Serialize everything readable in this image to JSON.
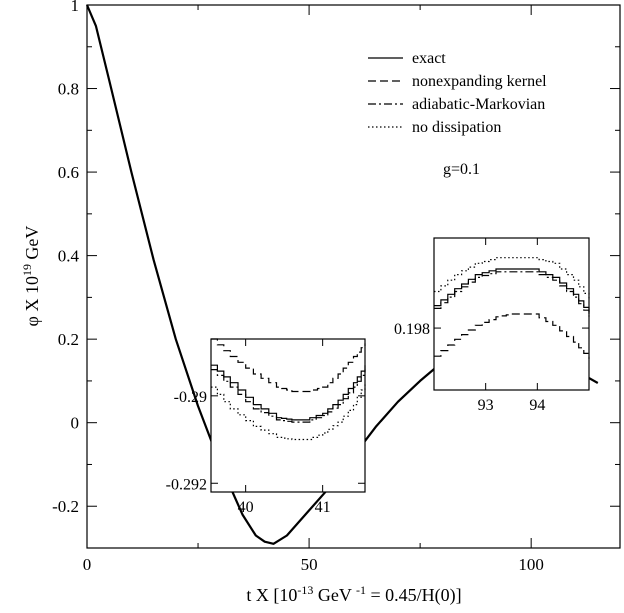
{
  "chart_data": {
    "type": "line",
    "title": "",
    "xlabel_parts": {
      "main": "t X [10",
      "exp1": "-13",
      "mid": " GeV ",
      "exp2": "-1",
      "tail": " = 0.45/H(0)]"
    },
    "ylabel_parts": {
      "main": "φ X 10",
      "exp": "19",
      "tail": " GeV"
    },
    "xlim": [
      0,
      120
    ],
    "ylim": [
      -0.3,
      1.0
    ],
    "x_ticks": [
      0,
      50,
      100
    ],
    "y_ticks": [
      -0.2,
      0,
      0.2,
      0.4,
      0.6,
      0.8,
      1
    ],
    "y_tick_labels": [
      "-0.2",
      "0",
      "0.2",
      "0.4",
      "0.6",
      "0.8",
      "1"
    ],
    "x_tick_labels": [
      "0",
      "50",
      "100"
    ],
    "grid": false,
    "legend_position": "top-right",
    "annotation": "g=0.1",
    "series": [
      {
        "name": "exact",
        "dash": "solid",
        "x": [
          0,
          2,
          5,
          10,
          15,
          20,
          25,
          30,
          35,
          38,
          40,
          42,
          45,
          50,
          55,
          60,
          65,
          70,
          75,
          80,
          85,
          90,
          93.5,
          97,
          100,
          105,
          110,
          115
        ],
        "y": [
          1.0,
          0.95,
          0.82,
          0.6,
          0.39,
          0.2,
          0.04,
          -0.1,
          -0.22,
          -0.27,
          -0.285,
          -0.29,
          -0.27,
          -0.21,
          -0.15,
          -0.08,
          -0.01,
          0.05,
          0.1,
          0.145,
          0.178,
          0.194,
          0.198,
          0.194,
          0.18,
          0.155,
          0.125,
          0.095
        ]
      },
      {
        "name": "nonexpanding kernel",
        "dash": "dashed"
      },
      {
        "name": "adiabatic-Markovian",
        "dash": "dashdot"
      },
      {
        "name": "no dissipation",
        "dash": "dotted"
      }
    ],
    "insets": [
      {
        "id": "inset-left",
        "xlim": [
          39.55,
          41.55
        ],
        "ylim": [
          -0.2922,
          -0.2887
        ],
        "x_ticks": [
          40,
          41
        ],
        "x_tick_labels": [
          "40",
          "41"
        ],
        "y_ticks": [
          -0.29,
          -0.292
        ],
        "y_tick_labels": [
          "-0.29",
          "-0.292"
        ],
        "curves": [
          {
            "dash": "solid",
            "x": [
              39.55,
              39.8,
              40.1,
              40.4,
              40.6,
              40.75,
              41.0,
              41.2,
              41.4,
              41.55
            ],
            "y": [
              -0.2893,
              -0.2897,
              -0.2902,
              -0.2905,
              -0.29055,
              -0.29055,
              -0.2904,
              -0.2901,
              -0.2897,
              -0.2893
            ]
          },
          {
            "dash": "dashed",
            "x": [
              39.55,
              39.8,
              40.1,
              40.4,
              40.6,
              40.8,
              41.0,
              41.2,
              41.4,
              41.55
            ],
            "y": [
              -0.2887,
              -0.2891,
              -0.2895,
              -0.2898,
              -0.2899,
              -0.2899,
              -0.2898,
              -0.2895,
              -0.2891,
              -0.2888
            ]
          },
          {
            "dash": "dashdot",
            "x": [
              39.55,
              39.8,
              40.1,
              40.4,
              40.6,
              40.75,
              41.0,
              41.2,
              41.4,
              41.55
            ],
            "y": [
              -0.2894,
              -0.2898,
              -0.2903,
              -0.29055,
              -0.2906,
              -0.2906,
              -0.29045,
              -0.2902,
              -0.2898,
              -0.2894
            ]
          },
          {
            "dash": "dotted",
            "x": [
              39.55,
              39.8,
              40.1,
              40.4,
              40.6,
              40.8,
              41.0,
              41.2,
              41.4,
              41.55
            ],
            "y": [
              -0.2898,
              -0.2903,
              -0.2907,
              -0.29095,
              -0.291,
              -0.291,
              -0.29085,
              -0.2906,
              -0.2902,
              -0.2897
            ]
          }
        ]
      },
      {
        "id": "inset-right",
        "xlim": [
          92.0,
          95.0
        ],
        "ylim": [
          0.19778,
          0.19832
        ],
        "x_ticks": [
          93,
          94
        ],
        "x_tick_labels": [
          "93",
          "94"
        ],
        "y_ticks": [
          0.198
        ],
        "y_tick_labels": [
          "0.198"
        ],
        "curves": [
          {
            "dash": "solid",
            "x": [
              92.0,
              92.4,
              92.8,
              93.2,
              93.5,
              93.9,
              94.3,
              94.7,
              95.0
            ],
            "y": [
              0.19808,
              0.19814,
              0.19819,
              0.19821,
              0.19821,
              0.19821,
              0.19818,
              0.19812,
              0.19805
            ]
          },
          {
            "dash": "dashed",
            "x": [
              92.0,
              92.4,
              92.8,
              93.2,
              93.5,
              93.9,
              94.3,
              94.7,
              95.0
            ],
            "y": [
              0.1979,
              0.19796,
              0.19801,
              0.19804,
              0.19805,
              0.19805,
              0.19801,
              0.19795,
              0.19789
            ]
          },
          {
            "dash": "dashdot",
            "x": [
              92.0,
              92.4,
              92.8,
              93.2,
              93.5,
              93.9,
              94.3,
              94.7,
              95.0
            ],
            "y": [
              0.19807,
              0.19813,
              0.19818,
              0.1982,
              0.1982,
              0.1982,
              0.19817,
              0.19811,
              0.19804
            ]
          },
          {
            "dash": "dotted",
            "x": [
              92.0,
              92.4,
              92.8,
              93.2,
              93.5,
              93.9,
              94.3,
              94.7,
              95.0
            ],
            "y": [
              0.19813,
              0.19819,
              0.19823,
              0.19825,
              0.19825,
              0.19825,
              0.19823,
              0.19817,
              0.1981
            ]
          }
        ]
      }
    ]
  }
}
